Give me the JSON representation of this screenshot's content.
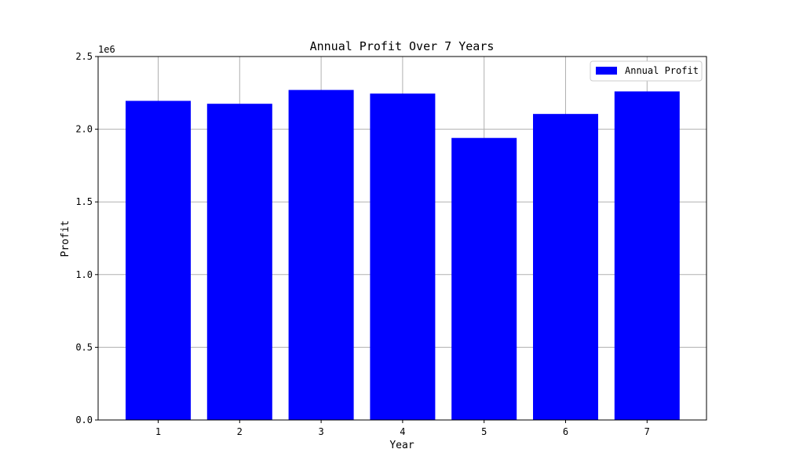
{
  "chart_data": {
    "type": "bar",
    "title": "Annual Profit Over 7 Years",
    "xlabel": "Year",
    "ylabel": "Profit",
    "y_offset_label": "1e6",
    "categories": [
      "1",
      "2",
      "3",
      "4",
      "5",
      "6",
      "7"
    ],
    "series": [
      {
        "name": "Annual Profit",
        "color": "#0000ff",
        "values": [
          2195000,
          2175000,
          2270000,
          2245000,
          1940000,
          2105000,
          2260000
        ]
      }
    ],
    "ylim": [
      0,
      2500000
    ],
    "y_ticks": [
      0,
      500000,
      1000000,
      1500000,
      2000000,
      2500000
    ],
    "y_tick_labels": [
      "0.0",
      "0.5",
      "1.0",
      "1.5",
      "2.0",
      "2.5"
    ],
    "grid": true,
    "legend_position": "top-right"
  }
}
